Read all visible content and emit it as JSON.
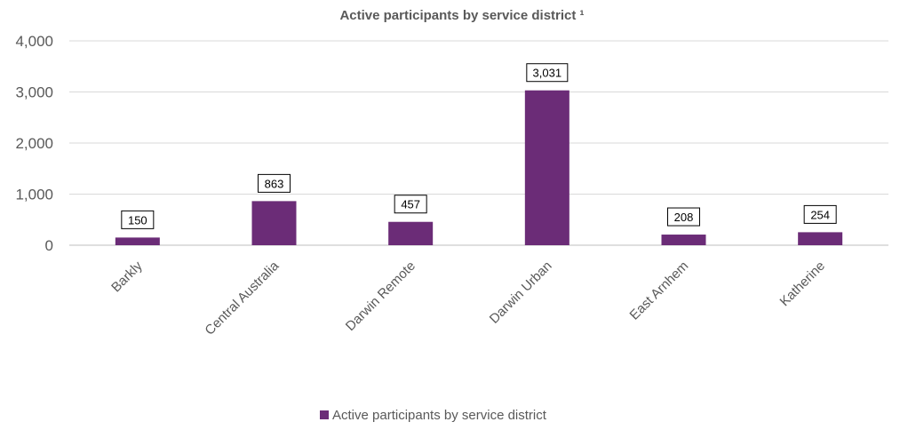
{
  "chart_data": {
    "type": "bar",
    "title": "Active participants by service district ¹",
    "categories": [
      "Barkly",
      "Central Australia",
      "Darwin Remote",
      "Darwin Urban",
      "East Arnhem",
      "Katherine"
    ],
    "series": [
      {
        "name": "Active participants by service district",
        "values": [
          150,
          863,
          457,
          3031,
          208,
          254
        ],
        "labels": [
          "150",
          "863",
          "457",
          "3,031",
          "208",
          "254"
        ],
        "color": "#6b2c77"
      }
    ],
    "ylim": [
      0,
      4000
    ],
    "yticks": [
      0,
      1000,
      2000,
      3000,
      4000
    ],
    "ytick_labels": [
      "0",
      "1,000",
      "2,000",
      "3,000",
      "4,000"
    ],
    "grid": true,
    "legend": "bottom",
    "xlabel": "",
    "ylabel": ""
  },
  "colors": {
    "bar": "#6b2c77",
    "grid": "#d9d9d9",
    "text": "#595959"
  }
}
